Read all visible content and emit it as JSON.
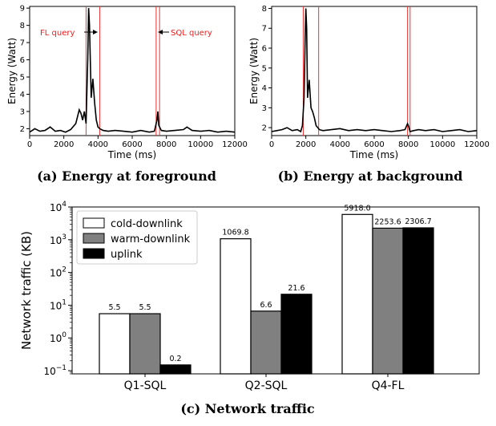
{
  "chart_data": [
    {
      "type": "line",
      "xlabel": "Time (ms)",
      "ylabel": "Energy (Watt)",
      "xlim": [
        0,
        12000
      ],
      "ylim": [
        1.6,
        9.1
      ],
      "xticks": [
        "0",
        "2000",
        "4000",
        "6000",
        "8000",
        "10000",
        "12000"
      ],
      "yticks": [
        "2",
        "3",
        "4",
        "5",
        "6",
        "7",
        "8",
        "9"
      ],
      "caption": "(a) Energy at foreground",
      "annotations": [
        "FL query",
        "SQL query"
      ],
      "markers": [
        3300,
        4100,
        7400,
        7600
      ],
      "x": [
        0,
        300,
        600,
        900,
        1200,
        1500,
        1800,
        2100,
        2400,
        2700,
        2900,
        3000,
        3100,
        3200,
        3300,
        3400,
        3450,
        3500,
        3600,
        3700,
        3800,
        3900,
        4000,
        4100,
        4300,
        4600,
        5000,
        5500,
        6000,
        6500,
        7000,
        7300,
        7450,
        7500,
        7550,
        7700,
        8000,
        8500,
        9000,
        9200,
        9500,
        10000,
        10500,
        11000,
        11500,
        12000
      ],
      "values": [
        1.8,
        2.0,
        1.85,
        1.9,
        2.1,
        1.85,
        1.9,
        1.8,
        1.95,
        2.3,
        3.1,
        2.9,
        2.5,
        3.0,
        2.3,
        6.0,
        9.0,
        8.0,
        3.8,
        4.9,
        3.5,
        2.5,
        2.1,
        2.0,
        1.9,
        1.85,
        1.9,
        1.85,
        1.8,
        1.9,
        1.8,
        1.85,
        2.5,
        3.0,
        2.2,
        1.9,
        1.85,
        1.9,
        1.95,
        2.1,
        1.9,
        1.85,
        1.9,
        1.8,
        1.85,
        1.8
      ]
    },
    {
      "type": "line",
      "xlabel": "Time (ms)",
      "ylabel": "Energy (Watt)",
      "xlim": [
        0,
        12000
      ],
      "ylim": [
        1.6,
        8.1
      ],
      "xticks": [
        "0",
        "2000",
        "4000",
        "6000",
        "8000",
        "10000",
        "12000"
      ],
      "yticks": [
        "2",
        "3",
        "4",
        "5",
        "6",
        "7",
        "8"
      ],
      "caption": "(b) Energy at background",
      "markers": [
        1850,
        2750,
        7950,
        8100
      ],
      "x": [
        0,
        300,
        600,
        900,
        1200,
        1500,
        1700,
        1800,
        1900,
        1950,
        2000,
        2050,
        2100,
        2200,
        2300,
        2400,
        2500,
        2600,
        2800,
        3000,
        3500,
        4000,
        4500,
        5000,
        5500,
        6000,
        6500,
        7000,
        7500,
        7800,
        7950,
        8000,
        8100,
        8300,
        8600,
        9000,
        9500,
        10000,
        10500,
        11000,
        11500,
        12000
      ],
      "values": [
        1.8,
        1.85,
        1.9,
        2.0,
        1.85,
        1.9,
        1.8,
        2.1,
        3.5,
        6.0,
        8.0,
        7.0,
        3.5,
        4.4,
        3.0,
        2.8,
        2.5,
        2.1,
        1.9,
        1.85,
        1.9,
        1.95,
        1.85,
        1.9,
        1.85,
        1.9,
        1.85,
        1.8,
        1.85,
        1.9,
        2.2,
        2.1,
        1.8,
        1.85,
        1.9,
        1.85,
        1.9,
        1.8,
        1.85,
        1.9,
        1.8,
        1.85
      ]
    },
    {
      "type": "bar",
      "ylabel": "Network traffic (KB)",
      "yscale": "log",
      "ylim": [
        0.08,
        10000
      ],
      "caption": "(c) Network traffic",
      "categories": [
        "Q1-SQL",
        "Q2-SQL",
        "Q4-FL"
      ],
      "series": [
        {
          "name": "cold-downlink",
          "values": [
            5.5,
            1069.8,
            5918.0
          ],
          "labels": [
            "5.5",
            "1069.8",
            "5918.0"
          ],
          "color": "#ffffff"
        },
        {
          "name": "warm-downlink",
          "values": [
            5.5,
            6.6,
            2253.6
          ],
          "labels": [
            "5.5",
            "6.6",
            "2253.6"
          ],
          "color": "#808080"
        },
        {
          "name": "uplink",
          "values": [
            0.15,
            21.6,
            2306.7
          ],
          "labels": [
            "0.2",
            "21.6",
            "2306.7"
          ],
          "color": "#000000"
        }
      ],
      "legend_position": "top-left"
    }
  ]
}
